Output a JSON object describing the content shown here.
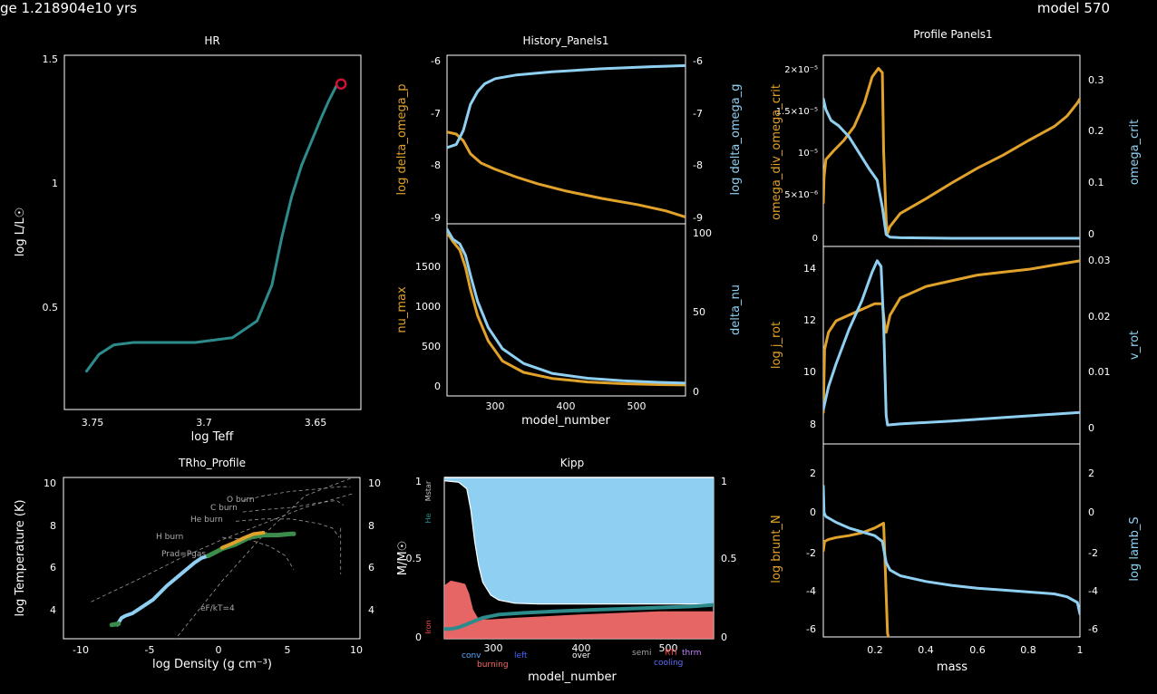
{
  "header": {
    "age": "ge 1.218904e10 yrs",
    "model": "model 570"
  },
  "colors": {
    "background": "#000000",
    "axis": "#ffffff",
    "orange": "#e0a22a",
    "blue": "#8fd0f2",
    "teal": "#2e8b8b",
    "green": "#3c8c4c",
    "red": "#ff7070",
    "marker": "#d0103a"
  },
  "panels": {
    "hr": {
      "title": "HR",
      "xlabel": "log Teff",
      "ylabel": "log L/L☉",
      "xticks": [
        "3.75",
        "3.7",
        "3.65"
      ],
      "yticks": [
        "0.5",
        "1",
        "1.5"
      ]
    },
    "history": {
      "title": "History_Panels1",
      "xlabel": "model_number",
      "xticks": [
        "300",
        "400",
        "500"
      ],
      "top": {
        "left_label": "log delta_omega_p",
        "right_label": "log delta_omega_g",
        "left_ticks": [
          "-6",
          "-7",
          "-8",
          "-9"
        ],
        "right_ticks": [
          "-6",
          "-7",
          "-8",
          "-9"
        ]
      },
      "bottom": {
        "left_label": "nu_max",
        "right_label": "delta_nu",
        "left_ticks": [
          "0",
          "500",
          "1000",
          "1500"
        ],
        "right_ticks": [
          "0",
          "50",
          "100"
        ]
      }
    },
    "profile": {
      "title": "Profile Panels1",
      "xlabel": "mass",
      "xticks": [
        "0.2",
        "0.4",
        "0.6",
        "0.8",
        "1"
      ],
      "top": {
        "left_label": "omega_div_omega_crit",
        "right_label": "omega_crit",
        "left_ticks": [
          "0",
          "5×10⁻⁶",
          "10⁻⁵",
          "1.5×10⁻⁵",
          "2×10⁻⁵"
        ],
        "right_ticks": [
          "0",
          "0.1",
          "0.2",
          "0.3"
        ]
      },
      "middle": {
        "left_label": "log j_rot",
        "right_label": "v_rot",
        "left_ticks": [
          "8",
          "10",
          "12",
          "14"
        ],
        "right_ticks": [
          "0",
          "0.01",
          "0.02",
          "0.03"
        ]
      },
      "bottom": {
        "left_label": "log brunt_N",
        "right_label": "log lamb_S",
        "left_ticks": [
          "-6",
          "-4",
          "-2",
          "0",
          "2"
        ],
        "right_ticks": [
          "-6",
          "-4",
          "-2",
          "0",
          "2"
        ]
      }
    },
    "trho": {
      "title": "TRho_Profile",
      "xlabel": "log Density (g cm⁻³)",
      "ylabel": "log Temperature (K)",
      "xticks": [
        "-10",
        "-5",
        "0",
        "5",
        "10"
      ],
      "yticks": [
        "4",
        "6",
        "8",
        "10"
      ],
      "right_ticks": [
        "4",
        "6",
        "8",
        "10"
      ],
      "annotations": [
        "O burn",
        "C burn",
        "He burn",
        "H burn",
        "Prad=Pgas",
        "eF/kT=4"
      ]
    },
    "kipp": {
      "title": "Kipp",
      "xlabel": "model_number",
      "ylabel": "M/M☉",
      "xticks": [
        "300",
        "400",
        "500"
      ],
      "yticks": [
        "0",
        "0.5",
        "1"
      ],
      "right_ticks": [
        "0",
        "0.5",
        "1"
      ],
      "side_labels": [
        "Mstar",
        "He",
        "Iron"
      ],
      "legend": [
        {
          "text": "conv",
          "color": "#58a8ff"
        },
        {
          "text": "left",
          "color": "#4466ff"
        },
        {
          "text": "burning",
          "color": "#ff6a6a"
        },
        {
          "text": "over",
          "color": "#ffffff"
        },
        {
          "text": "semi",
          "color": "#a0a0a0"
        },
        {
          "text": "RTI",
          "color": "#ff4040"
        },
        {
          "text": "thrm",
          "color": "#c080ff"
        },
        {
          "text": "cooling",
          "color": "#6070ff"
        }
      ]
    }
  },
  "chart_data": [
    {
      "id": "hr",
      "type": "line",
      "title": "HR",
      "xlabel": "log Teff",
      "ylabel": "log L/L☉",
      "xlim": [
        3.758,
        3.638
      ],
      "ylim": [
        0.03,
        1.51
      ],
      "x_reversed": true,
      "series": [
        {
          "color": "#2e8b8b",
          "x": [
            3.749,
            3.744,
            3.738,
            3.73,
            3.72,
            3.705,
            3.69,
            3.68,
            3.674,
            3.67,
            3.666,
            3.662,
            3.658,
            3.654,
            3.651,
            3.648
          ],
          "y": [
            0.19,
            0.26,
            0.3,
            0.31,
            0.31,
            0.31,
            0.33,
            0.4,
            0.55,
            0.75,
            0.92,
            1.05,
            1.15,
            1.25,
            1.32,
            1.38
          ]
        }
      ],
      "marker": {
        "x": 3.646,
        "y": 1.39
      }
    },
    {
      "id": "hist-top",
      "type": "line",
      "xlim": [
        232,
        568
      ],
      "ylim": [
        -9.15,
        -5.9
      ],
      "ylim_right": [
        -9.15,
        -5.9
      ],
      "series": [
        {
          "axis": "left",
          "color": "#e0a22a",
          "x": [
            232,
            245,
            255,
            265,
            280,
            300,
            330,
            360,
            400,
            450,
            500,
            540,
            568
          ],
          "y": [
            -7.38,
            -7.42,
            -7.55,
            -7.8,
            -7.98,
            -8.1,
            -8.25,
            -8.38,
            -8.52,
            -8.66,
            -8.78,
            -8.9,
            -9.02
          ]
        },
        {
          "axis": "right",
          "color": "#8fd0f2",
          "x": [
            232,
            245,
            255,
            260,
            265,
            275,
            285,
            300,
            330,
            380,
            450,
            520,
            568
          ],
          "y": [
            -7.68,
            -7.62,
            -7.35,
            -7.1,
            -6.85,
            -6.6,
            -6.45,
            -6.35,
            -6.28,
            -6.22,
            -6.16,
            -6.12,
            -6.1
          ]
        }
      ]
    },
    {
      "id": "hist-bottom",
      "type": "line",
      "xlim": [
        232,
        568
      ],
      "ylim": [
        -70,
        1900
      ],
      "ylim_right": [
        -3.8,
        101.3
      ],
      "xlabel": "model_number",
      "series": [
        {
          "axis": "left",
          "color": "#e0a22a",
          "x": [
            232,
            240,
            250,
            258,
            265,
            275,
            290,
            310,
            340,
            380,
            430,
            480,
            530,
            568
          ],
          "y": [
            1800,
            1700,
            1600,
            1400,
            1150,
            850,
            560,
            330,
            200,
            130,
            90,
            70,
            60,
            55
          ]
        },
        {
          "axis": "right",
          "color": "#8fd0f2",
          "x": [
            232,
            240,
            250,
            258,
            265,
            275,
            290,
            310,
            340,
            380,
            430,
            480,
            530,
            568
          ],
          "y": [
            98,
            92,
            89,
            82,
            70,
            54,
            38,
            25,
            16,
            10,
            7,
            5.5,
            4.5,
            4
          ]
        }
      ]
    },
    {
      "id": "prof-top",
      "type": "line",
      "xlim": [
        0,
        1
      ],
      "ylim": [
        -1e-06,
        2.1e-05
      ],
      "ylim_right": [
        -0.012,
        0.34
      ],
      "series": [
        {
          "axis": "left",
          "color": "#e0a22a",
          "x": [
            0,
            0.003,
            0.01,
            0.04,
            0.08,
            0.12,
            0.16,
            0.19,
            0.215,
            0.23,
            0.235,
            0.245,
            0.25,
            0.26,
            0.3,
            0.4,
            0.5,
            0.6,
            0.7,
            0.8,
            0.9,
            0.95,
            0.99,
            1.0
          ],
          "y": [
            4e-06,
            7e-06,
            9e-06,
            1e-05,
            1.12e-05,
            1.28e-05,
            1.55e-05,
            1.85e-05,
            1.95e-05,
            1.9e-05,
            1e-05,
            2e-06,
            5e-07,
            1.3e-06,
            2.8e-06,
            4.5e-06,
            6.3e-06,
            8e-06,
            9.5e-06,
            1.12e-05,
            1.28e-05,
            1.4e-05,
            1.55e-05,
            1.6e-05
          ]
        },
        {
          "axis": "right",
          "color": "#8fd0f2",
          "x": [
            0,
            0.01,
            0.03,
            0.06,
            0.1,
            0.14,
            0.18,
            0.21,
            0.23,
            0.245,
            0.26,
            0.3,
            0.5,
            0.7,
            1.0
          ],
          "y": [
            0.26,
            0.24,
            0.22,
            0.21,
            0.19,
            0.16,
            0.13,
            0.11,
            0.06,
            0.01,
            0.005,
            0.004,
            0.003,
            0.003,
            0.003
          ]
        }
      ]
    },
    {
      "id": "prof-mid",
      "type": "line",
      "xlim": [
        0,
        1
      ],
      "ylim": [
        7.5,
        14.4
      ],
      "ylim_right": [
        -0.003,
        0.0315
      ],
      "series": [
        {
          "axis": "left",
          "color": "#e0a22a",
          "x": [
            0,
            0.005,
            0.02,
            0.05,
            0.1,
            0.15,
            0.2,
            0.23,
            0.24,
            0.245,
            0.26,
            0.3,
            0.4,
            0.5,
            0.6,
            0.7,
            0.8,
            0.9,
            1.0
          ],
          "y": [
            8.6,
            10.8,
            11.4,
            11.8,
            12.0,
            12.2,
            12.4,
            12.4,
            11.6,
            11.4,
            12.0,
            12.6,
            13.0,
            13.2,
            13.4,
            13.5,
            13.6,
            13.75,
            13.9
          ]
        },
        {
          "axis": "right",
          "color": "#8fd0f2",
          "x": [
            0,
            0.02,
            0.05,
            0.1,
            0.15,
            0.19,
            0.21,
            0.225,
            0.235,
            0.245,
            0.25,
            0.3,
            0.5,
            0.7,
            0.9,
            1.0
          ],
          "y": [
            0.003,
            0.007,
            0.011,
            0.017,
            0.022,
            0.027,
            0.029,
            0.028,
            0.018,
            0.002,
            0.0003,
            0.0005,
            0.001,
            0.0016,
            0.0022,
            0.0025
          ]
        }
      ]
    },
    {
      "id": "prof-bot",
      "type": "line",
      "xlim": [
        0,
        1
      ],
      "ylim": [
        -6.7,
        3.4
      ],
      "ylim_right": [
        -6.7,
        3.4
      ],
      "xlabel": "mass",
      "series": [
        {
          "axis": "left",
          "color": "#e0a22a",
          "x": [
            0,
            0.005,
            0.02,
            0.05,
            0.1,
            0.15,
            0.2,
            0.235,
            0.24,
            0.245,
            0.25,
            0.255
          ],
          "y": [
            -2.2,
            -1.7,
            -1.6,
            -1.5,
            -1.4,
            -1.25,
            -1.0,
            -0.75,
            -2.5,
            -4.5,
            -6.5,
            -6.8
          ]
        },
        {
          "axis": "right",
          "color": "#8fd0f2",
          "x": [
            0,
            0.003,
            0.01,
            0.05,
            0.1,
            0.15,
            0.2,
            0.23,
            0.245,
            0.26,
            0.3,
            0.4,
            0.5,
            0.6,
            0.7,
            0.8,
            0.9,
            0.95,
            0.99,
            1.0
          ],
          "y": [
            1.2,
            -0.2,
            -0.4,
            -0.7,
            -1.0,
            -1.2,
            -1.4,
            -1.7,
            -2.8,
            -3.2,
            -3.5,
            -3.8,
            -4.0,
            -4.15,
            -4.25,
            -4.35,
            -4.45,
            -4.6,
            -4.9,
            -5.5
          ]
        }
      ]
    },
    {
      "id": "trho",
      "type": "line",
      "title": "TRho_Profile",
      "xlim": [
        -11.5,
        10
      ],
      "ylim": [
        3.0,
        10.0
      ],
      "series": [
        {
          "color": "#8fd0f2",
          "x": [
            -7.6,
            -7.3,
            -7.0,
            -6.5,
            -6.0,
            -5.0,
            -4.0,
            -3.0,
            -2.0,
            -1.5,
            -1.0
          ],
          "y": [
            3.6,
            3.9,
            4.0,
            4.1,
            4.3,
            4.7,
            5.3,
            5.8,
            6.3,
            6.5,
            6.6
          ]
        },
        {
          "color": "#3c8c4c",
          "x": [
            -1.0,
            0.0,
            1.0,
            2.0,
            3.0,
            4.0,
            5.0,
            5.2
          ],
          "y": [
            6.6,
            6.9,
            7.1,
            7.4,
            7.5,
            7.5,
            7.55,
            7.55
          ]
        },
        {
          "color": "#e0a22a",
          "x": [
            0.0,
            0.8,
            1.5,
            2.3,
            3.0
          ],
          "y": [
            6.95,
            7.15,
            7.35,
            7.55,
            7.6
          ]
        },
        {
          "color": "#3c8c4c",
          "x": [
            -8.0,
            -7.5
          ],
          "y": [
            3.6,
            3.65
          ]
        }
      ],
      "guides": [
        {
          "x": [
            -9.5,
            -6,
            -3,
            0,
            3,
            6,
            9.5
          ],
          "y": [
            4.6,
            5.6,
            6.5,
            7.3,
            8.0,
            8.7,
            9.3
          ]
        },
        {
          "x": [
            -3.5,
            0,
            3,
            6,
            9.5
          ],
          "y": [
            2.9,
            5.5,
            7.5,
            9.2,
            10.0
          ]
        },
        {
          "x": [
            1.5,
            3,
            5,
            7,
            8.5,
            9.3
          ],
          "y": [
            9.0,
            9.2,
            9.4,
            9.5,
            9.6,
            9.6
          ]
        },
        {
          "x": [
            1.5,
            3,
            5,
            7,
            8.3,
            8.8
          ],
          "y": [
            8.5,
            8.6,
            8.7,
            8.9,
            9.0,
            8.8
          ]
        },
        {
          "x": [
            1.0,
            3,
            5,
            7,
            8.0,
            8.5
          ],
          "y": [
            8.1,
            8.2,
            8.2,
            8.0,
            7.8,
            7.4
          ]
        },
        {
          "x": [
            0.0,
            2,
            3.5,
            4.6,
            5.2
          ],
          "y": [
            7.4,
            7.3,
            7.0,
            6.6,
            6.0
          ]
        },
        {
          "x": [
            8.6,
            8.6
          ],
          "y": [
            7.8,
            5.8
          ]
        }
      ]
    },
    {
      "id": "kipp",
      "type": "area",
      "title": "Kipp",
      "xlim": [
        232,
        568
      ],
      "ylim": [
        0,
        1.0
      ],
      "xlabel": "model_number",
      "ylabel": "M/M☉",
      "convective_envelope_bottom": {
        "x": [
          232,
          250,
          260,
          265,
          270,
          275,
          280,
          290,
          300,
          320,
          350,
          400,
          450,
          500,
          568
        ],
        "y": [
          0.98,
          0.97,
          0.93,
          0.8,
          0.6,
          0.45,
          0.35,
          0.27,
          0.24,
          0.22,
          0.215,
          0.215,
          0.215,
          0.215,
          0.215
        ]
      },
      "burning_top": {
        "x": [
          232,
          240,
          250,
          258,
          263,
          268,
          275,
          290,
          320,
          360,
          400,
          450,
          500,
          568
        ],
        "y": [
          0.33,
          0.36,
          0.35,
          0.34,
          0.28,
          0.18,
          0.12,
          0.12,
          0.13,
          0.14,
          0.15,
          0.16,
          0.17,
          0.17
        ]
      },
      "he_core": {
        "x": [
          232,
          240,
          250,
          260,
          270,
          280,
          300,
          330,
          370,
          420,
          480,
          540,
          568
        ],
        "y": [
          0.06,
          0.06,
          0.07,
          0.09,
          0.11,
          0.13,
          0.15,
          0.16,
          0.17,
          0.18,
          0.19,
          0.2,
          0.21
        ]
      },
      "mstar": 1.0
    }
  ]
}
